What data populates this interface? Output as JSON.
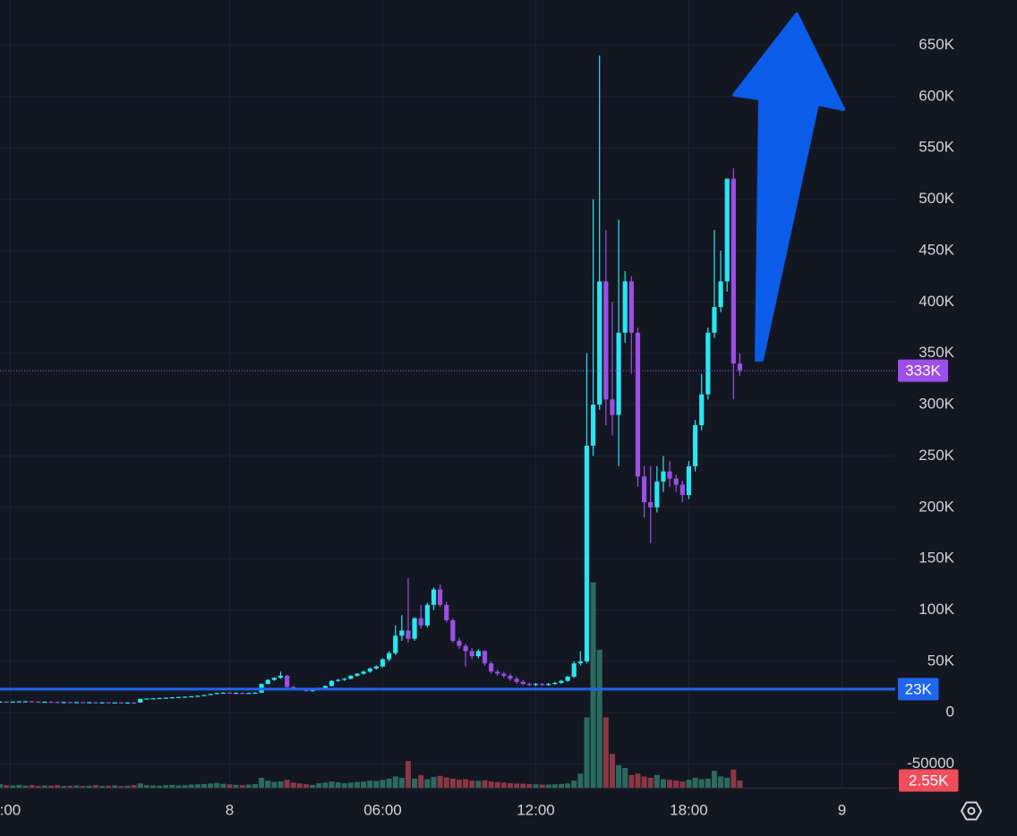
{
  "chart_data": {
    "type": "candlestick",
    "x": [
      -9,
      -8.75,
      -8.5,
      -8.25,
      -8,
      -7.75,
      -7.5,
      -7.25,
      -7,
      -6.75,
      -6.5,
      -6.25,
      -6,
      -5.75,
      -5.5,
      -5.25,
      -5,
      -4.75,
      -4.5,
      -4.25,
      -4,
      -3.75,
      -3.5,
      -3.25,
      -3,
      -2.75,
      -2.5,
      -2.25,
      -2,
      -1.75,
      -1.5,
      -1.25,
      -1,
      -0.75,
      -0.5,
      -0.25,
      0,
      0.25,
      0.5,
      0.75,
      1,
      1.25,
      1.5,
      1.75,
      2,
      2.25,
      2.5,
      2.75,
      3,
      3.25,
      3.5,
      3.75,
      4,
      4.25,
      4.5,
      4.75,
      5,
      5.25,
      5.5,
      5.75,
      6,
      6.25,
      6.5,
      6.75,
      7,
      7.25,
      7.5,
      7.75,
      8,
      8.25,
      8.5,
      8.75,
      9,
      9.25,
      9.5,
      9.75,
      10,
      10.25,
      10.5,
      10.75,
      11,
      11.25,
      11.5,
      11.75,
      12,
      12.25,
      12.5,
      12.75,
      13,
      13.25,
      13.5,
      13.75,
      14,
      14.25,
      14.5,
      14.75,
      15,
      15.25,
      15.5,
      15.75,
      16,
      16.25,
      16.5,
      16.75,
      17,
      17.25,
      17.5,
      17.75,
      18,
      18.25,
      18.5,
      18.75,
      19,
      19.25,
      19.5,
      19.75,
      20
    ],
    "open": [
      10500,
      10800,
      10600,
      10900,
      11000,
      11100,
      10800,
      10600,
      10700,
      10500,
      10300,
      10400,
      10200,
      10300,
      10100,
      10200,
      10000,
      10100,
      9900,
      10000,
      9800,
      9900,
      9800,
      13500,
      13800,
      14000,
      14300,
      14600,
      15000,
      15300,
      15600,
      16000,
      16500,
      17200,
      18200,
      19200,
      19500,
      19000,
      19300,
      18900,
      19200,
      19500,
      28000,
      32000,
      34000,
      36000,
      25000,
      23000,
      22000,
      21000,
      22000,
      24000,
      26000,
      31000,
      32000,
      33000,
      36000,
      38000,
      40000,
      43000,
      45000,
      52000,
      58000,
      75000,
      80000,
      72000,
      92000,
      85000,
      105000,
      120000,
      105000,
      90000,
      70000,
      65000,
      60000,
      55000,
      60000,
      48000,
      40000,
      38000,
      36000,
      33000,
      30000,
      28000,
      27000,
      28000,
      27000,
      28000,
      29000,
      31000,
      35000,
      48000,
      50000,
      260000,
      300000,
      420000,
      305000,
      290000,
      370000,
      420000,
      370000,
      230000,
      205000,
      200000,
      225000,
      235000,
      228000,
      222000,
      212000,
      240000,
      280000,
      310000,
      370000,
      395000,
      420000,
      520000,
      340000
    ],
    "high": [
      11000,
      11000,
      11000,
      11200,
      11300,
      11300,
      11000,
      10900,
      11000,
      10700,
      10600,
      10600,
      10500,
      10500,
      10400,
      10400,
      10300,
      10300,
      10200,
      10200,
      10100,
      10200,
      13500,
      14000,
      14200,
      14500,
      14800,
      15200,
      15500,
      15800,
      16200,
      16800,
      17500,
      18500,
      19500,
      20000,
      20500,
      19800,
      20000,
      19500,
      20000,
      28500,
      32500,
      34500,
      40000,
      37000,
      26000,
      24000,
      23000,
      22500,
      24500,
      26500,
      31500,
      33000,
      34000,
      36500,
      38500,
      41000,
      44000,
      46000,
      53000,
      60000,
      85000,
      95000,
      131000,
      93000,
      105000,
      107000,
      122000,
      125000,
      108000,
      92000,
      73000,
      67000,
      63000,
      62000,
      61000,
      50000,
      42000,
      40000,
      38000,
      35000,
      32000,
      29500,
      29000,
      29000,
      29000,
      30000,
      32000,
      36000,
      50000,
      60000,
      350000,
      500000,
      640000,
      470000,
      400000,
      480000,
      430000,
      425000,
      375000,
      240000,
      240000,
      240000,
      250000,
      245000,
      232000,
      226000,
      245000,
      285000,
      330000,
      375000,
      470000,
      450000,
      520000,
      530000,
      350000
    ],
    "low": [
      10000,
      10500,
      10400,
      10700,
      10800,
      10700,
      10500,
      10400,
      10500,
      10200,
      10100,
      10100,
      10000,
      10000,
      9900,
      9900,
      9800,
      9800,
      9700,
      9700,
      9600,
      9700,
      9700,
      13200,
      13500,
      13800,
      14000,
      14400,
      14800,
      15000,
      15400,
      15800,
      16300,
      17000,
      18000,
      18800,
      19000,
      18600,
      18800,
      18500,
      18800,
      19200,
      27500,
      31000,
      33000,
      24500,
      22500,
      21500,
      20500,
      20500,
      21500,
      23500,
      25500,
      30000,
      31000,
      32500,
      35000,
      37000,
      39000,
      42000,
      44000,
      50000,
      56000,
      70000,
      68000,
      70000,
      82000,
      83000,
      100000,
      103000,
      88000,
      68000,
      62000,
      45000,
      52000,
      53000,
      46000,
      38000,
      36000,
      34000,
      31000,
      28000,
      27000,
      26000,
      26000,
      26000,
      26000,
      27000,
      28000,
      30000,
      34000,
      46000,
      48000,
      250000,
      295000,
      280000,
      270000,
      240000,
      360000,
      330000,
      220000,
      190000,
      165000,
      195000,
      215000,
      220000,
      215000,
      205000,
      208000,
      235000,
      275000,
      305000,
      365000,
      390000,
      410000,
      305000,
      328000
    ],
    "close": [
      10800,
      10600,
      10900,
      11000,
      11100,
      10800,
      10600,
      10700,
      10500,
      10300,
      10400,
      10200,
      10300,
      10100,
      10200,
      10000,
      10100,
      9900,
      10000,
      9800,
      9900,
      9800,
      13500,
      13800,
      14000,
      14300,
      14600,
      15000,
      15300,
      15600,
      16000,
      16500,
      17200,
      18200,
      19200,
      19500,
      19000,
      19300,
      18900,
      19200,
      19500,
      28000,
      32000,
      34000,
      36000,
      25000,
      23000,
      22000,
      21000,
      22000,
      24000,
      26000,
      31000,
      32000,
      33000,
      36000,
      38000,
      40000,
      43000,
      45000,
      52000,
      58000,
      75000,
      80000,
      72000,
      92000,
      85000,
      105000,
      120000,
      105000,
      90000,
      70000,
      65000,
      60000,
      55000,
      60000,
      48000,
      40000,
      38000,
      36000,
      33000,
      30000,
      28000,
      27000,
      28000,
      27000,
      28000,
      29000,
      31000,
      35000,
      48000,
      50000,
      260000,
      300000,
      420000,
      305000,
      290000,
      370000,
      420000,
      370000,
      230000,
      205000,
      200000,
      225000,
      235000,
      228000,
      222000,
      212000,
      240000,
      280000,
      310000,
      370000,
      395000,
      420000,
      520000,
      340000,
      333000
    ],
    "volume": [
      1200,
      900,
      800,
      1000,
      700,
      900,
      600,
      800,
      700,
      900,
      600,
      700,
      800,
      600,
      700,
      900,
      600,
      700,
      800,
      600,
      700,
      900,
      1500,
      900,
      800,
      700,
      900,
      1000,
      800,
      900,
      1100,
      1200,
      1300,
      1500,
      1700,
      1400,
      1200,
      1000,
      900,
      1100,
      1300,
      3500,
      2500,
      2000,
      2200,
      2800,
      1800,
      1500,
      1200,
      1000,
      1600,
      1800,
      2200,
      1900,
      1600,
      1800,
      2000,
      2200,
      2500,
      2400,
      2800,
      3200,
      4000,
      3500,
      9500,
      3200,
      4500,
      3000,
      3800,
      4200,
      3600,
      3200,
      2800,
      3000,
      2500,
      2400,
      2600,
      2200,
      2000,
      1800,
      1600,
      1500,
      1400,
      1300,
      1200,
      1100,
      1100,
      1200,
      1300,
      1500,
      2500,
      5000,
      25000,
      73000,
      49000,
      25000,
      12000,
      8000,
      7000,
      4500,
      5000,
      4000,
      3500,
      4500,
      3000,
      2800,
      2500,
      2200,
      2800,
      3500,
      3000,
      3200,
      6000,
      4000,
      3500,
      6400,
      2550
    ],
    "up_color": "#29e6f2",
    "down_color": "#9b4fe6",
    "volume_up_color": "#2a6b60",
    "volume_down_color": "#8a3842",
    "xlim": [
      -9,
      26.09
    ],
    "ylim": [
      -73000,
      694000
    ],
    "y2lim": [
      0,
      280000
    ],
    "xticks": [
      {
        "value": -8.6,
        "label": ":00"
      },
      {
        "value": 0,
        "label": "8"
      },
      {
        "value": 6,
        "label": "06:00"
      },
      {
        "value": 12,
        "label": "12:00"
      },
      {
        "value": 18,
        "label": "18:00"
      },
      {
        "value": 24,
        "label": "9"
      }
    ],
    "yticks": [
      -50000,
      0,
      {
        "value": 50000,
        "label": "50K"
      },
      {
        "value": 100000,
        "label": "100K"
      },
      {
        "value": 150000,
        "label": "150K"
      },
      {
        "value": 200000,
        "label": "200K"
      },
      {
        "value": 250000,
        "label": "250K"
      },
      {
        "value": 300000,
        "label": "300K"
      },
      {
        "value": 350000,
        "label": "350K"
      },
      {
        "value": 400000,
        "label": "400K"
      },
      {
        "value": 450000,
        "label": "450K"
      },
      {
        "value": 500000,
        "label": "500K"
      },
      {
        "value": 550000,
        "label": "550K"
      },
      {
        "value": 600000,
        "label": "600K"
      },
      {
        "value": 650000,
        "label": "650K"
      }
    ],
    "grid": true,
    "price_lines": [
      {
        "value": 333000,
        "label": "333K",
        "color": "#9c4ee9",
        "style": "dotted"
      },
      {
        "value": 23000,
        "label": "23K",
        "color": "#1f66ee",
        "style": "solid"
      }
    ],
    "volume_label": {
      "value": 2550,
      "label": "2.55K",
      "color": "#f04d5a"
    }
  }
}
